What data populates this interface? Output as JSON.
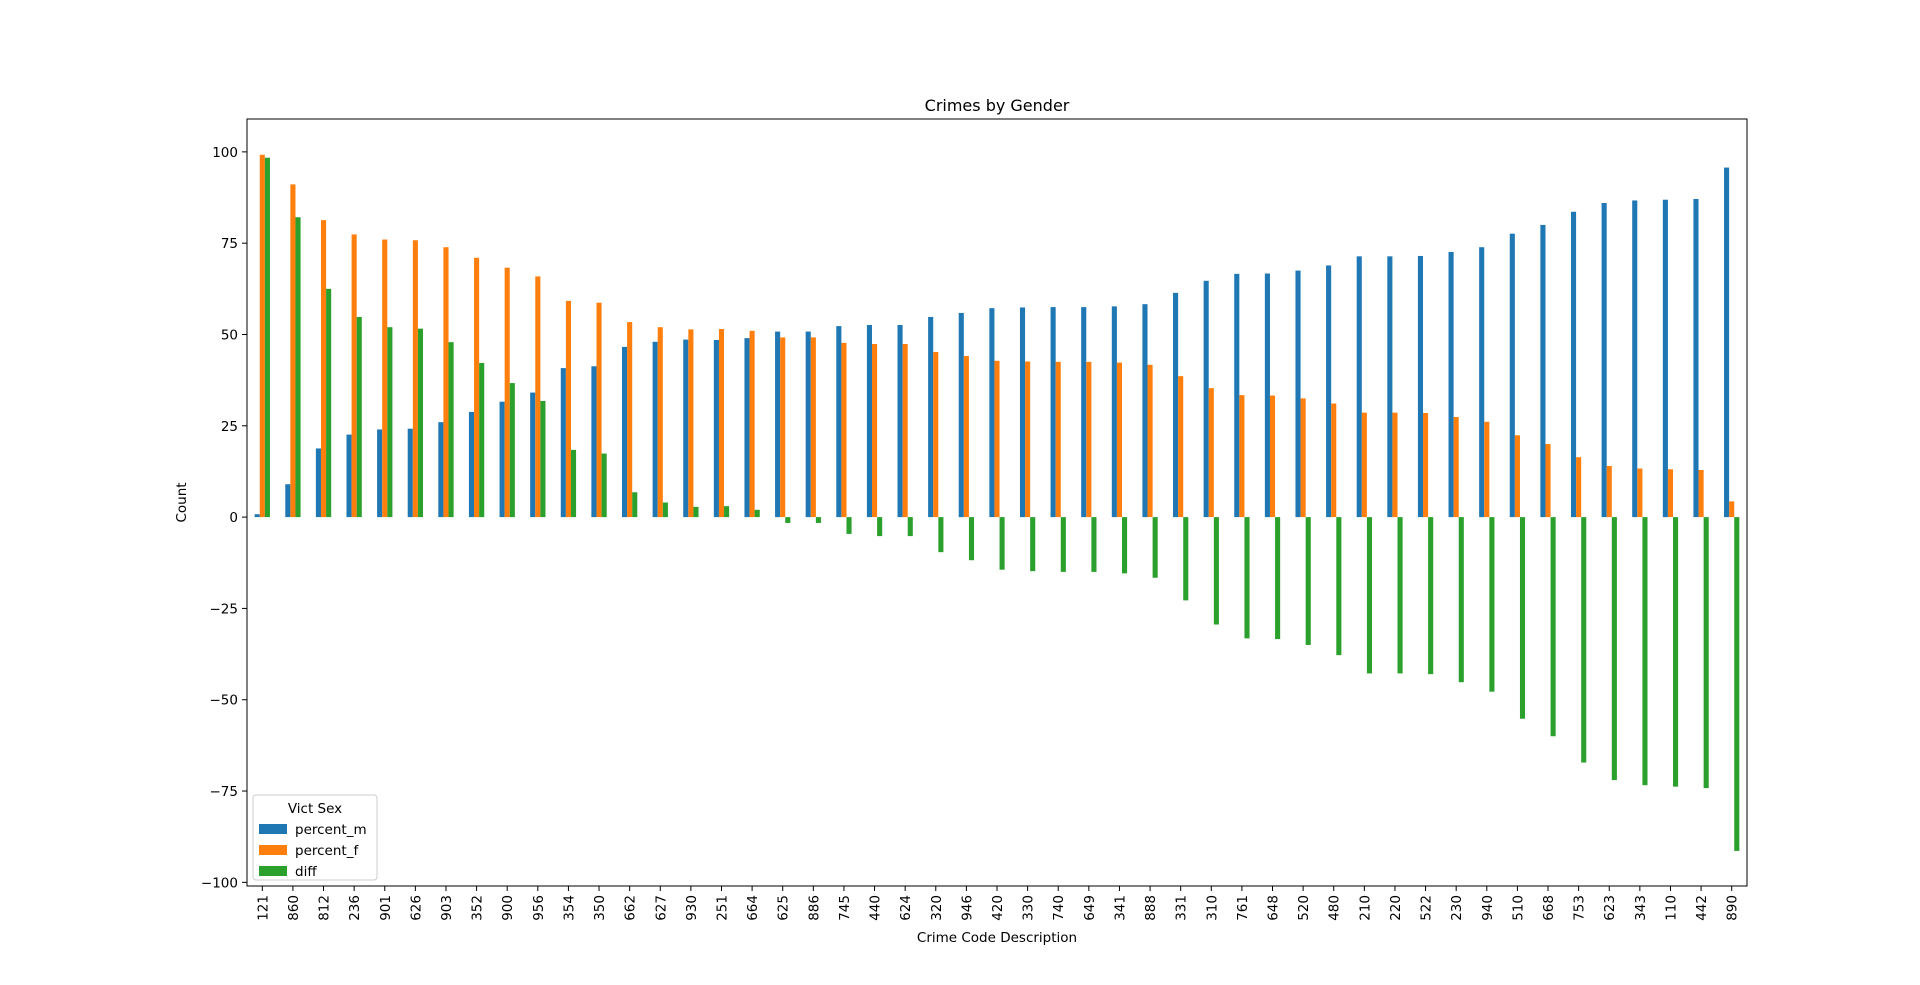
{
  "chart_data": {
    "type": "bar",
    "title": "Crimes by Gender",
    "xlabel": "Crime Code Description",
    "ylabel": "Count",
    "ylim": [
      -101,
      109
    ],
    "yticks": [
      -100,
      -75,
      -50,
      -25,
      0,
      25,
      50,
      75,
      100
    ],
    "ytick_labels": [
      "−100",
      "−75",
      "−50",
      "−25",
      "0",
      "25",
      "50",
      "75",
      "100"
    ],
    "grid": false,
    "legend_title": "Vict Sex",
    "legend_placement": "lower-left",
    "categories": [
      "121",
      "860",
      "812",
      "236",
      "901",
      "626",
      "903",
      "352",
      "900",
      "956",
      "354",
      "350",
      "662",
      "627",
      "930",
      "251",
      "664",
      "625",
      "886",
      "745",
      "440",
      "624",
      "320",
      "946",
      "420",
      "330",
      "740",
      "649",
      "341",
      "888",
      "331",
      "310",
      "761",
      "648",
      "520",
      "480",
      "210",
      "220",
      "522",
      "230",
      "940",
      "510",
      "668",
      "753",
      "623",
      "343",
      "110",
      "442",
      "890"
    ],
    "series": [
      {
        "name": "percent_m",
        "color": "#1f77b4",
        "values": [
          0.8,
          9,
          18.8,
          22.6,
          24,
          24.2,
          26,
          28.8,
          31.6,
          34.1,
          40.8,
          41.3,
          46.6,
          48,
          48.6,
          48.5,
          49,
          50.8,
          50.8,
          52.3,
          52.6,
          52.6,
          54.8,
          55.9,
          57.2,
          57.4,
          57.5,
          57.5,
          57.7,
          58.3,
          61.4,
          64.7,
          66.6,
          66.7,
          67.5,
          68.9,
          71.4,
          71.4,
          71.5,
          72.6,
          73.9,
          77.6,
          80,
          83.6,
          86,
          86.7,
          86.9,
          87.1,
          95.7
        ]
      },
      {
        "name": "percent_f",
        "color": "#ff7f0e",
        "values": [
          99.2,
          91.1,
          81.3,
          77.4,
          76,
          75.8,
          73.9,
          71,
          68.3,
          65.9,
          59.2,
          58.7,
          53.4,
          52,
          51.4,
          51.5,
          51,
          49.2,
          49.2,
          47.7,
          47.4,
          47.4,
          45.2,
          44.1,
          42.8,
          42.6,
          42.5,
          42.5,
          42.3,
          41.7,
          38.6,
          35.3,
          33.4,
          33.3,
          32.5,
          31.1,
          28.6,
          28.6,
          28.5,
          27.4,
          26.1,
          22.4,
          20,
          16.4,
          14,
          13.3,
          13.1,
          12.9,
          4.3
        ]
      },
      {
        "name": "diff",
        "color": "#2ca02c",
        "values": [
          98.4,
          82.1,
          62.5,
          54.8,
          52,
          51.6,
          47.9,
          42.2,
          36.7,
          31.8,
          18.4,
          17.4,
          6.8,
          4,
          2.8,
          3,
          2,
          -1.6,
          -1.6,
          -4.6,
          -5.2,
          -5.2,
          -9.6,
          -11.8,
          -14.4,
          -14.8,
          -15,
          -15,
          -15.4,
          -16.6,
          -22.8,
          -29.4,
          -33.2,
          -33.4,
          -35,
          -37.8,
          -42.8,
          -42.8,
          -43,
          -45.2,
          -47.8,
          -55.2,
          -60,
          -67.2,
          -72,
          -73.4,
          -73.8,
          -74.2,
          -91.4
        ]
      }
    ]
  }
}
